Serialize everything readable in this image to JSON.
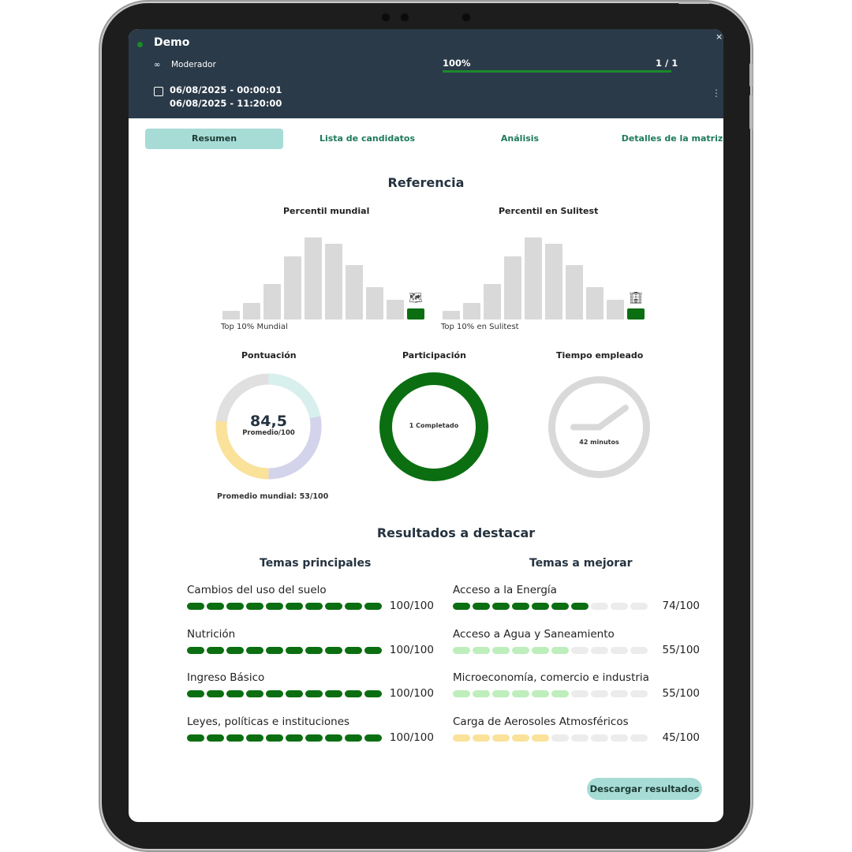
{
  "header": {
    "title": "Demo",
    "role": "Moderador",
    "date_start": "06/08/2025 - 00:00:01",
    "date_end": "06/08/2025 - 11:20:00",
    "progress_label": "100%",
    "progress_value": 1.0,
    "count": "1 / 1",
    "close_icon": "×"
  },
  "tabs": [
    "Resumen",
    "Lista de candidatos",
    "Análisis",
    "Detalles de la matriz"
  ],
  "reference": {
    "title": "Referencia",
    "world": {
      "title": "Percentil mundial",
      "caption": "Top 10% Mundial",
      "icon": "map-icon"
    },
    "sulitest": {
      "title": "Percentil en Sulitest",
      "caption": "Top 10% en Sulitest",
      "icon": "building-icon"
    },
    "distribution": [
      1,
      2,
      4.3,
      7.6,
      9.9,
      9.1,
      6.6,
      3.9,
      2.4,
      1.3
    ],
    "highlight_bin": 9
  },
  "score": {
    "title": "Pontuación",
    "value": "84,5",
    "caption": "Promedio/100",
    "world_avg": "Promedio mundial: 53/100"
  },
  "participation": {
    "title": "Participación",
    "label": "1 Completado"
  },
  "time": {
    "title": "Tiempo empleado",
    "label": "42 minutos"
  },
  "highlights": {
    "title": "Resultados a destacar",
    "top_title": "Temas principales",
    "improve_title": "Temas a mejorar",
    "top": [
      {
        "name": "Cambios del uso del suelo",
        "score": "100/100",
        "value": 100
      },
      {
        "name": "Nutrición",
        "score": "100/100",
        "value": 100
      },
      {
        "name": "Ingreso Básico",
        "score": "100/100",
        "value": 100
      },
      {
        "name": "Leyes, políticas e instituciones",
        "score": "100/100",
        "value": 100
      }
    ],
    "improve": [
      {
        "name": "Acceso a la Energía",
        "score": "74/100",
        "value": 74
      },
      {
        "name": "Acceso a Agua y Saneamiento",
        "score": "55/100",
        "value": 55
      },
      {
        "name": "Microeconomía, comercio e industria",
        "score": "55/100",
        "value": 55
      },
      {
        "name": "Carga de Aerosoles Atmosféricos",
        "score": "45/100",
        "value": 45
      }
    ]
  },
  "download_label": "Descargar resultados",
  "colors": {
    "accent": "#a6dcd5",
    "dark_green": "#0b6e10",
    "light_green": "#bdeebc",
    "yellow": "#fbe29b",
    "header_bg": "#2b3a49"
  }
}
